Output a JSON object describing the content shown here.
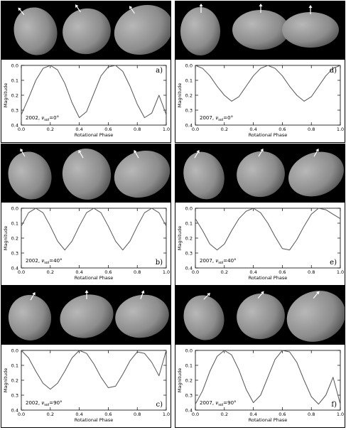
{
  "colors": {
    "background": "#000000",
    "ellipsoid": "#8c8c8c",
    "axis_marker": "#ffffff",
    "curve": "#555555",
    "frame": "#000000"
  },
  "shared": {
    "xlabel": "Rotational Phase",
    "ylabel": "Magnitude",
    "xticks": [
      "0.0",
      "0.2",
      "0.4",
      "0.6",
      "0.8",
      "1.0"
    ],
    "yticks": [
      "0.0",
      "0.1",
      "0.2",
      "0.3",
      "0.4"
    ],
    "xlim": [
      0.0,
      1.0
    ],
    "ylim_reversed": [
      0.4,
      0.0
    ]
  },
  "panels": [
    {
      "id": "a",
      "label": "a)",
      "year": "2002",
      "nu": "0°",
      "label_pos": "top-right",
      "annot_pos": "bottom-left",
      "shapes": 3
    },
    {
      "id": "d",
      "label": "d)",
      "year": "2007",
      "nu": "0°",
      "label_pos": "top-right",
      "annot_pos": "bottom-left",
      "shapes": 3
    },
    {
      "id": "b",
      "label": "b)",
      "year": "2002",
      "nu": "40°",
      "label_pos": "bottom-right",
      "annot_pos": "bottom-left",
      "shapes": 3
    },
    {
      "id": "e",
      "label": "e)",
      "year": "2007",
      "nu": "40°",
      "label_pos": "bottom-right",
      "annot_pos": "bottom-left",
      "shapes": 3
    },
    {
      "id": "c",
      "label": "c)",
      "year": "2002",
      "nu": "90°",
      "label_pos": "bottom-right",
      "annot_pos": "bottom-left",
      "shapes": 3
    },
    {
      "id": "f",
      "label": "f)",
      "year": "2007",
      "nu": "90°",
      "label_pos": "bottom-right",
      "annot_pos": "bottom-left",
      "shapes": 3
    }
  ],
  "chart_data": [
    {
      "type": "line",
      "panel": "a)",
      "xlabel": "Rotational Phase",
      "ylabel": "Magnitude",
      "xlim": [
        0.0,
        1.0
      ],
      "ylim": [
        0.4,
        0.0
      ],
      "series": [
        {
          "x": [
            0.0,
            0.05,
            0.1,
            0.15,
            0.2,
            0.25,
            0.3,
            0.35,
            0.4,
            0.45,
            0.5,
            0.55,
            0.6,
            0.65,
            0.7,
            0.75,
            0.8,
            0.85,
            0.9,
            0.95,
            1.0
          ],
          "values": [
            0.33,
            0.22,
            0.1,
            0.02,
            0.0,
            0.03,
            0.12,
            0.25,
            0.35,
            0.31,
            0.19,
            0.07,
            0.01,
            0.0,
            0.04,
            0.14,
            0.26,
            0.35,
            0.32,
            0.2,
            0.33
          ]
        }
      ]
    },
    {
      "type": "line",
      "panel": "d)",
      "xlabel": "Rotational Phase",
      "ylabel": "Magnitude",
      "xlim": [
        0.0,
        1.0
      ],
      "ylim": [
        0.4,
        0.0
      ],
      "series": [
        {
          "x": [
            0.0,
            0.05,
            0.1,
            0.15,
            0.2,
            0.25,
            0.3,
            0.35,
            0.4,
            0.45,
            0.5,
            0.55,
            0.6,
            0.65,
            0.7,
            0.75,
            0.8,
            0.85,
            0.9,
            0.95,
            1.0
          ],
          "values": [
            0.0,
            0.02,
            0.07,
            0.14,
            0.2,
            0.24,
            0.21,
            0.14,
            0.07,
            0.02,
            0.0,
            0.02,
            0.07,
            0.14,
            0.2,
            0.24,
            0.21,
            0.14,
            0.07,
            0.02,
            0.0
          ]
        }
      ]
    },
    {
      "type": "line",
      "panel": "b)",
      "xlabel": "Rotational Phase",
      "ylabel": "Magnitude",
      "xlim": [
        0.0,
        1.0
      ],
      "ylim": [
        0.4,
        0.0
      ],
      "series": [
        {
          "x": [
            0.0,
            0.05,
            0.1,
            0.15,
            0.2,
            0.25,
            0.3,
            0.35,
            0.4,
            0.45,
            0.5,
            0.55,
            0.6,
            0.65,
            0.7,
            0.75,
            0.8,
            0.85,
            0.9,
            0.95,
            1.0
          ],
          "values": [
            0.12,
            0.03,
            0.0,
            0.03,
            0.12,
            0.22,
            0.28,
            0.22,
            0.12,
            0.03,
            0.0,
            0.03,
            0.12,
            0.22,
            0.28,
            0.22,
            0.12,
            0.03,
            0.0,
            0.03,
            0.12
          ]
        }
      ]
    },
    {
      "type": "line",
      "panel": "e)",
      "xlabel": "Rotational Phase",
      "ylabel": "Magnitude",
      "xlim": [
        0.0,
        1.0
      ],
      "ylim": [
        0.4,
        0.0
      ],
      "series": [
        {
          "x": [
            0.0,
            0.05,
            0.1,
            0.15,
            0.2,
            0.25,
            0.3,
            0.35,
            0.4,
            0.45,
            0.5,
            0.55,
            0.6,
            0.65,
            0.7,
            0.75,
            0.8,
            0.85,
            0.9,
            0.95,
            1.0
          ],
          "values": [
            0.07,
            0.15,
            0.24,
            0.28,
            0.24,
            0.15,
            0.07,
            0.02,
            0.0,
            0.03,
            0.1,
            0.19,
            0.27,
            0.28,
            0.21,
            0.12,
            0.04,
            0.0,
            0.01,
            0.04,
            0.07
          ]
        }
      ]
    },
    {
      "type": "line",
      "panel": "c)",
      "xlabel": "Rotational Phase",
      "ylabel": "Magnitude",
      "xlim": [
        0.0,
        1.0
      ],
      "ylim": [
        0.4,
        0.0
      ],
      "series": [
        {
          "x": [
            0.0,
            0.05,
            0.1,
            0.15,
            0.2,
            0.25,
            0.3,
            0.35,
            0.4,
            0.45,
            0.5,
            0.55,
            0.6,
            0.65,
            0.7,
            0.75,
            0.8,
            0.85,
            0.9,
            0.95,
            1.0
          ],
          "values": [
            0.0,
            0.05,
            0.14,
            0.22,
            0.26,
            0.22,
            0.14,
            0.05,
            0.0,
            0.02,
            0.09,
            0.18,
            0.25,
            0.24,
            0.16,
            0.07,
            0.01,
            0.02,
            0.08,
            0.17,
            0.0
          ]
        }
      ]
    },
    {
      "type": "line",
      "panel": "f)",
      "xlabel": "Rotational Phase",
      "ylabel": "Magnitude",
      "xlim": [
        0.0,
        1.0
      ],
      "ylim": [
        0.4,
        0.0
      ],
      "series": [
        {
          "x": [
            0.0,
            0.05,
            0.1,
            0.15,
            0.2,
            0.25,
            0.3,
            0.35,
            0.4,
            0.45,
            0.5,
            0.55,
            0.6,
            0.65,
            0.7,
            0.75,
            0.8,
            0.85,
            0.9,
            0.95,
            1.0
          ],
          "values": [
            0.36,
            0.27,
            0.14,
            0.04,
            0.0,
            0.03,
            0.13,
            0.26,
            0.35,
            0.3,
            0.18,
            0.06,
            0.0,
            0.01,
            0.08,
            0.2,
            0.31,
            0.36,
            0.3,
            0.18,
            0.36
          ]
        }
      ]
    }
  ]
}
